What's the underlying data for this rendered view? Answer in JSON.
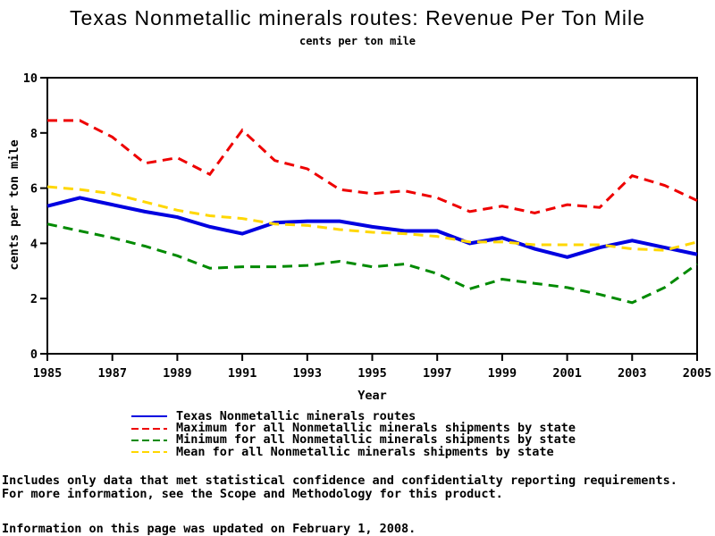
{
  "chart_data": {
    "type": "line",
    "title": "Texas Nonmetallic minerals routes: Revenue Per Ton Mile",
    "subtitle": "cents per ton mile",
    "xlabel": "Year",
    "ylabel": "cents per ton mile",
    "xlim": [
      1985,
      2005
    ],
    "ylim": [
      0,
      10
    ],
    "xticks": [
      1985,
      1987,
      1989,
      1991,
      1993,
      1995,
      1997,
      1999,
      2001,
      2003,
      2005
    ],
    "yticks": [
      0,
      2,
      4,
      6,
      8,
      10
    ],
    "grid": false,
    "legend_position": "bottom",
    "x": [
      1985,
      1986,
      1987,
      1988,
      1989,
      1990,
      1991,
      1992,
      1993,
      1994,
      1995,
      1996,
      1997,
      1998,
      1999,
      2000,
      2001,
      2002,
      2003,
      2004,
      2005
    ],
    "series": [
      {
        "name": "Texas Nonmetallic minerals routes",
        "color": "#0000E0",
        "line_style": "solid",
        "line_width": 4,
        "values": [
          5.35,
          5.65,
          5.4,
          5.15,
          4.95,
          4.6,
          4.35,
          4.75,
          4.8,
          4.8,
          4.6,
          4.45,
          4.45,
          4.0,
          4.2,
          3.8,
          3.5,
          3.85,
          4.1,
          3.85,
          3.6
        ]
      },
      {
        "name": "Maximum for all Nonmetallic minerals shipments by state",
        "color": "#EE0000",
        "line_style": "dashed",
        "line_width": 3,
        "values": [
          8.45,
          8.45,
          7.85,
          6.9,
          7.1,
          6.5,
          8.1,
          7.0,
          6.7,
          5.95,
          5.8,
          5.9,
          5.65,
          5.15,
          5.35,
          5.1,
          5.4,
          5.3,
          6.45,
          6.1,
          5.55
        ]
      },
      {
        "name": "Minimum for all Nonmetallic minerals shipments by state",
        "color": "#008A00",
        "line_style": "dashed",
        "line_width": 3,
        "values": [
          4.7,
          4.45,
          4.2,
          3.9,
          3.55,
          3.1,
          3.15,
          3.15,
          3.2,
          3.35,
          3.15,
          3.25,
          2.9,
          2.35,
          2.7,
          2.55,
          2.4,
          2.15,
          1.85,
          2.4,
          3.25
        ]
      },
      {
        "name": "Mean for all Nonmetallic minerals shipments by state",
        "color": "#FFD700",
        "line_style": "dashed",
        "line_width": 3,
        "values": [
          6.05,
          5.95,
          5.8,
          5.5,
          5.2,
          5.0,
          4.9,
          4.7,
          4.65,
          4.5,
          4.4,
          4.35,
          4.25,
          4.05,
          4.05,
          3.95,
          3.95,
          3.95,
          3.8,
          3.75,
          4.05
        ]
      }
    ]
  },
  "footer": {
    "line1": "Includes only data that met statistical confidence and confidentialty reporting requirements.",
    "line2": "For more information, see the Scope and Methodology for this product.",
    "update_note": "Information on this page was updated on February 1, 2008."
  }
}
